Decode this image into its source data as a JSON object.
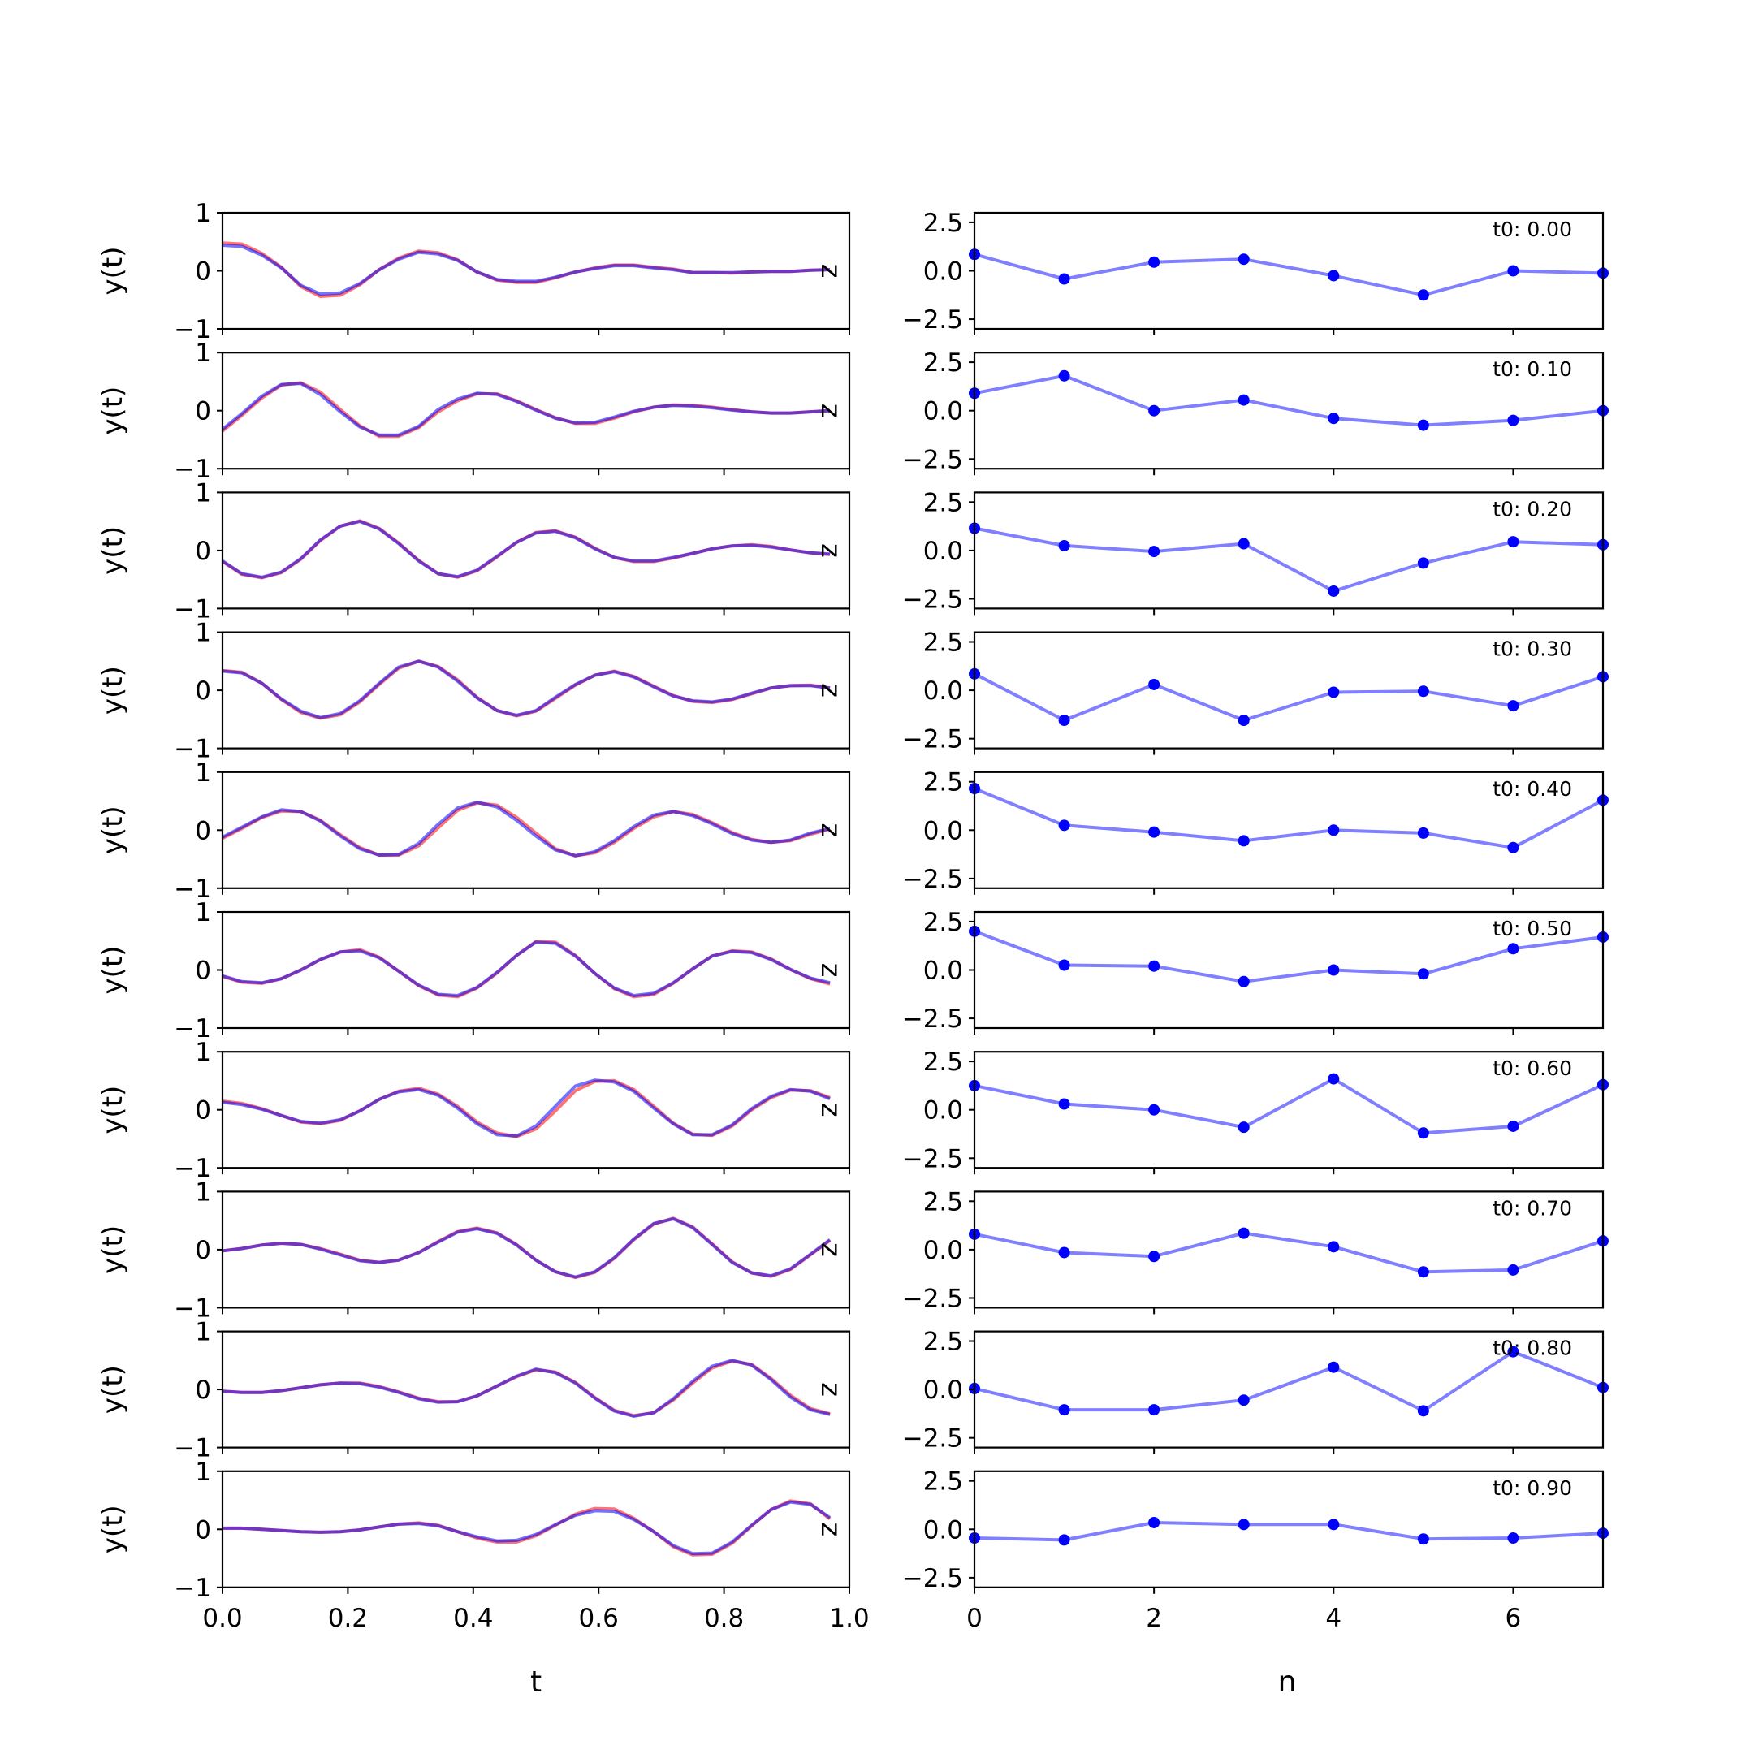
{
  "figure": {
    "left_xlabel": "t",
    "right_xlabel": "n",
    "left_ylabel": "y(t)",
    "right_ylabel": "z"
  },
  "colors": {
    "true": "#ff0000",
    "pred": "#0000ff",
    "latent": "#0000ff"
  },
  "chart_data": [
    {
      "type": "line",
      "panel": "left-stack",
      "xlabel": "t",
      "ylabel": "y(t)",
      "xlim": [
        0,
        1
      ],
      "ylim": [
        -1,
        1
      ],
      "xticks": [
        "0.0",
        "0.2",
        "0.4",
        "0.6",
        "0.8",
        "1.0"
      ],
      "yticks": [
        "-1",
        "0",
        "1"
      ],
      "x": [
        0.0,
        0.031,
        0.063,
        0.094,
        0.125,
        0.156,
        0.188,
        0.219,
        0.25,
        0.281,
        0.313,
        0.344,
        0.375,
        0.406,
        0.438,
        0.469,
        0.5,
        0.531,
        0.563,
        0.594,
        0.625,
        0.656,
        0.688,
        0.719,
        0.75,
        0.781,
        0.813,
        0.844,
        0.875,
        0.906,
        0.938,
        0.969
      ],
      "rows": [
        {
          "blue": [
            0.44,
            0.42,
            0.27,
            0.05,
            -0.25,
            -0.4,
            -0.38,
            -0.22,
            0.02,
            0.2,
            0.32,
            0.29,
            0.18,
            -0.02,
            -0.15,
            -0.18,
            -0.18,
            -0.11,
            -0.02,
            0.04,
            0.09,
            0.09,
            0.05,
            0.02,
            -0.03,
            -0.03,
            -0.03,
            -0.02,
            -0.01,
            -0.01,
            0.01,
            0.02
          ],
          "red": [
            0.48,
            0.46,
            0.3,
            0.06,
            -0.27,
            -0.44,
            -0.42,
            -0.24,
            0.02,
            0.22,
            0.34,
            0.31,
            0.19,
            -0.02,
            -0.16,
            -0.2,
            -0.2,
            -0.12,
            -0.02,
            0.05,
            0.1,
            0.1,
            0.06,
            0.03,
            -0.03,
            -0.03,
            -0.04,
            -0.02,
            -0.01,
            -0.01,
            0.01,
            0.02
          ]
        },
        {
          "blue": [
            -0.32,
            -0.05,
            0.25,
            0.45,
            0.47,
            0.28,
            -0.02,
            -0.28,
            -0.42,
            -0.42,
            -0.27,
            0.02,
            0.2,
            0.3,
            0.28,
            0.16,
            0.01,
            -0.13,
            -0.21,
            -0.2,
            -0.11,
            -0.01,
            0.06,
            0.09,
            0.08,
            0.05,
            0.01,
            -0.02,
            -0.04,
            -0.04,
            -0.02,
            0.0
          ],
          "red": [
            -0.35,
            -0.08,
            0.22,
            0.44,
            0.48,
            0.32,
            0.02,
            -0.26,
            -0.44,
            -0.44,
            -0.29,
            -0.02,
            0.17,
            0.29,
            0.29,
            0.17,
            0.02,
            -0.12,
            -0.22,
            -0.22,
            -0.13,
            -0.02,
            0.06,
            0.1,
            0.09,
            0.06,
            0.02,
            -0.02,
            -0.04,
            -0.04,
            -0.02,
            0.0
          ]
        },
        {
          "blue": [
            -0.18,
            -0.4,
            -0.46,
            -0.37,
            -0.14,
            0.18,
            0.42,
            0.5,
            0.37,
            0.12,
            -0.18,
            -0.4,
            -0.45,
            -0.34,
            -0.1,
            0.14,
            0.3,
            0.33,
            0.22,
            0.03,
            -0.12,
            -0.18,
            -0.18,
            -0.12,
            -0.05,
            0.03,
            0.08,
            0.09,
            0.06,
            0.01,
            -0.04,
            -0.06
          ],
          "red": [
            -0.19,
            -0.41,
            -0.47,
            -0.38,
            -0.15,
            0.17,
            0.42,
            0.51,
            0.38,
            0.13,
            -0.17,
            -0.4,
            -0.46,
            -0.35,
            -0.11,
            0.14,
            0.31,
            0.34,
            0.23,
            0.04,
            -0.12,
            -0.19,
            -0.19,
            -0.13,
            -0.05,
            0.03,
            0.08,
            0.1,
            0.07,
            0.01,
            -0.04,
            -0.07
          ]
        },
        {
          "blue": [
            0.33,
            0.3,
            0.12,
            -0.15,
            -0.36,
            -0.47,
            -0.4,
            -0.18,
            0.12,
            0.4,
            0.5,
            0.4,
            0.16,
            -0.13,
            -0.35,
            -0.43,
            -0.35,
            -0.12,
            0.1,
            0.26,
            0.32,
            0.23,
            0.06,
            -0.1,
            -0.18,
            -0.2,
            -0.15,
            -0.05,
            0.04,
            0.08,
            0.08,
            0.04
          ],
          "red": [
            0.34,
            0.31,
            0.12,
            -0.16,
            -0.38,
            -0.48,
            -0.42,
            -0.2,
            0.1,
            0.38,
            0.5,
            0.41,
            0.18,
            -0.12,
            -0.35,
            -0.44,
            -0.36,
            -0.14,
            0.09,
            0.26,
            0.33,
            0.24,
            0.07,
            -0.09,
            -0.19,
            -0.21,
            -0.16,
            -0.06,
            0.04,
            0.08,
            0.09,
            0.04
          ]
        },
        {
          "blue": [
            -0.12,
            0.05,
            0.23,
            0.35,
            0.32,
            0.16,
            -0.1,
            -0.32,
            -0.43,
            -0.42,
            -0.23,
            0.1,
            0.38,
            0.48,
            0.4,
            0.17,
            -0.1,
            -0.34,
            -0.44,
            -0.37,
            -0.18,
            0.06,
            0.26,
            0.32,
            0.25,
            0.11,
            -0.06,
            -0.17,
            -0.21,
            -0.17,
            -0.05,
            0.03
          ],
          "red": [
            -0.14,
            0.03,
            0.22,
            0.33,
            0.32,
            0.17,
            -0.08,
            -0.3,
            -0.43,
            -0.43,
            -0.27,
            0.04,
            0.34,
            0.47,
            0.43,
            0.22,
            -0.05,
            -0.32,
            -0.44,
            -0.39,
            -0.21,
            0.03,
            0.23,
            0.32,
            0.27,
            0.13,
            -0.04,
            -0.16,
            -0.21,
            -0.18,
            -0.07,
            0.02
          ]
        },
        {
          "blue": [
            -0.1,
            -0.2,
            -0.22,
            -0.15,
            0.0,
            0.18,
            0.31,
            0.33,
            0.21,
            -0.02,
            -0.26,
            -0.42,
            -0.44,
            -0.3,
            -0.04,
            0.25,
            0.48,
            0.46,
            0.24,
            -0.06,
            -0.31,
            -0.44,
            -0.4,
            -0.22,
            0.02,
            0.24,
            0.32,
            0.3,
            0.18,
            0.01,
            -0.14,
            -0.22
          ],
          "red": [
            -0.11,
            -0.21,
            -0.23,
            -0.15,
            0.0,
            0.18,
            0.31,
            0.35,
            0.22,
            -0.02,
            -0.27,
            -0.43,
            -0.46,
            -0.31,
            -0.05,
            0.25,
            0.49,
            0.48,
            0.25,
            -0.06,
            -0.32,
            -0.46,
            -0.42,
            -0.23,
            0.02,
            0.24,
            0.33,
            0.31,
            0.19,
            0.01,
            -0.15,
            -0.24
          ]
        },
        {
          "blue": [
            0.13,
            0.09,
            0.01,
            -0.1,
            -0.2,
            -0.23,
            -0.17,
            -0.02,
            0.18,
            0.31,
            0.35,
            0.25,
            0.03,
            -0.24,
            -0.43,
            -0.45,
            -0.28,
            0.06,
            0.41,
            0.51,
            0.48,
            0.32,
            0.03,
            -0.24,
            -0.43,
            -0.43,
            -0.26,
            0.02,
            0.23,
            0.35,
            0.32,
            0.19
          ],
          "red": [
            0.15,
            0.11,
            0.02,
            -0.1,
            -0.21,
            -0.24,
            -0.18,
            -0.02,
            0.18,
            0.32,
            0.37,
            0.27,
            0.06,
            -0.21,
            -0.4,
            -0.46,
            -0.33,
            -0.02,
            0.33,
            0.49,
            0.5,
            0.35,
            0.06,
            -0.23,
            -0.42,
            -0.44,
            -0.28,
            0.0,
            0.21,
            0.34,
            0.33,
            0.21
          ]
        },
        {
          "blue": [
            -0.02,
            0.02,
            0.08,
            0.11,
            0.09,
            0.01,
            -0.09,
            -0.19,
            -0.22,
            -0.18,
            -0.05,
            0.13,
            0.3,
            0.36,
            0.28,
            0.08,
            -0.18,
            -0.38,
            -0.47,
            -0.38,
            -0.14,
            0.18,
            0.45,
            0.53,
            0.38,
            0.09,
            -0.22,
            -0.4,
            -0.45,
            -0.33,
            -0.08,
            0.17
          ],
          "red": [
            -0.02,
            0.02,
            0.08,
            0.11,
            0.09,
            0.02,
            -0.08,
            -0.18,
            -0.22,
            -0.18,
            -0.05,
            0.14,
            0.31,
            0.37,
            0.29,
            0.09,
            -0.18,
            -0.38,
            -0.48,
            -0.39,
            -0.15,
            0.17,
            0.44,
            0.54,
            0.39,
            0.1,
            -0.21,
            -0.4,
            -0.46,
            -0.34,
            -0.09,
            0.16
          ]
        },
        {
          "blue": [
            -0.03,
            -0.05,
            -0.05,
            -0.02,
            0.03,
            0.08,
            0.11,
            0.1,
            0.04,
            -0.05,
            -0.16,
            -0.22,
            -0.21,
            -0.11,
            0.06,
            0.23,
            0.35,
            0.29,
            0.11,
            -0.15,
            -0.37,
            -0.46,
            -0.4,
            -0.16,
            0.14,
            0.4,
            0.5,
            0.42,
            0.17,
            -0.13,
            -0.35,
            -0.43
          ],
          "red": [
            -0.03,
            -0.05,
            -0.05,
            -0.02,
            0.03,
            0.08,
            0.11,
            0.11,
            0.05,
            -0.04,
            -0.15,
            -0.21,
            -0.21,
            -0.11,
            0.06,
            0.22,
            0.34,
            0.3,
            0.12,
            -0.14,
            -0.36,
            -0.45,
            -0.4,
            -0.18,
            0.11,
            0.37,
            0.49,
            0.43,
            0.19,
            -0.1,
            -0.33,
            -0.42
          ]
        },
        {
          "blue": [
            0.02,
            0.02,
            0.0,
            -0.02,
            -0.04,
            -0.05,
            -0.04,
            -0.01,
            0.04,
            0.09,
            0.1,
            0.06,
            -0.04,
            -0.13,
            -0.2,
            -0.19,
            -0.09,
            0.08,
            0.24,
            0.32,
            0.31,
            0.17,
            -0.04,
            -0.28,
            -0.42,
            -0.41,
            -0.22,
            0.07,
            0.34,
            0.47,
            0.43,
            0.2
          ],
          "red": [
            0.02,
            0.02,
            0.0,
            -0.02,
            -0.04,
            -0.05,
            -0.04,
            -0.01,
            0.04,
            0.09,
            0.11,
            0.07,
            -0.04,
            -0.15,
            -0.22,
            -0.22,
            -0.11,
            0.07,
            0.26,
            0.36,
            0.35,
            0.19,
            -0.04,
            -0.3,
            -0.44,
            -0.43,
            -0.24,
            0.06,
            0.34,
            0.49,
            0.44,
            0.18
          ]
        }
      ]
    },
    {
      "type": "line",
      "panel": "right-stack",
      "xlabel": "n",
      "xlim": [
        0,
        7
      ],
      "ylim": [
        -3,
        3
      ],
      "xticks": [
        "0",
        "2",
        "4",
        "6"
      ],
      "yticks": [
        "-2.5",
        "0.0",
        "2.5"
      ],
      "x": [
        0,
        1,
        2,
        3,
        4,
        5,
        6,
        7
      ],
      "rows": [
        {
          "label": "t0: 0.00",
          "values": [
            0.85,
            -0.42,
            0.45,
            0.6,
            -0.25,
            -1.25,
            0.0,
            -0.12
          ]
        },
        {
          "label": "t0: 0.10",
          "values": [
            0.9,
            1.8,
            0.0,
            0.55,
            -0.4,
            -0.75,
            -0.5,
            0.0
          ]
        },
        {
          "label": "t0: 0.20",
          "values": [
            1.15,
            0.25,
            -0.05,
            0.35,
            -2.1,
            -0.65,
            0.45,
            0.3
          ]
        },
        {
          "label": "t0: 0.30",
          "values": [
            0.85,
            -1.55,
            0.3,
            -1.55,
            -0.1,
            -0.05,
            -0.8,
            0.7
          ]
        },
        {
          "label": "t0: 0.40",
          "values": [
            2.15,
            0.25,
            -0.1,
            -0.55,
            0.0,
            -0.15,
            -0.9,
            1.55
          ]
        },
        {
          "label": "t0: 0.50",
          "values": [
            2.0,
            0.25,
            0.2,
            -0.6,
            0.0,
            -0.2,
            1.1,
            1.7
          ]
        },
        {
          "label": "t0: 0.60",
          "values": [
            1.25,
            0.3,
            0.0,
            -0.9,
            1.6,
            -1.2,
            -0.85,
            1.3
          ]
        },
        {
          "label": "t0: 0.70",
          "values": [
            0.8,
            -0.15,
            -0.35,
            0.85,
            0.15,
            -1.15,
            -1.05,
            0.45
          ]
        },
        {
          "label": "t0: 0.80",
          "values": [
            0.05,
            -1.05,
            -1.05,
            -0.55,
            1.15,
            -1.1,
            1.95,
            0.1
          ]
        },
        {
          "label": "t0: 0.90",
          "values": [
            -0.45,
            -0.55,
            0.35,
            0.25,
            0.25,
            -0.5,
            -0.45,
            -0.2
          ]
        }
      ]
    }
  ]
}
